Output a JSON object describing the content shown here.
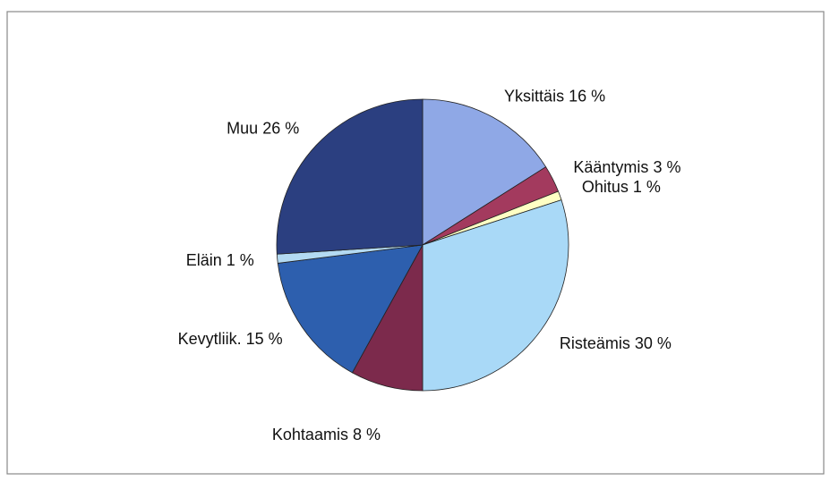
{
  "chart_data": {
    "type": "pie",
    "categories": [
      "Yksittäis",
      "Kääntymis",
      "Ohitus",
      "Risteämis",
      "Kohtaamis",
      "Kevytliik.",
      "Eläin",
      "Muu"
    ],
    "values": [
      16,
      3,
      1,
      30,
      8,
      15,
      1,
      26
    ],
    "value_labels": [
      "16 %",
      "3 %",
      "1 %",
      "30 %",
      "8 %",
      "15 %",
      "1 %",
      "26 %"
    ],
    "colors": [
      "#8fa8e6",
      "#a33a5e",
      "#ffffc4",
      "#a9d9f7",
      "#7c2a4c",
      "#2d5fae",
      "#b3daf2",
      "#2b3f80"
    ]
  }
}
